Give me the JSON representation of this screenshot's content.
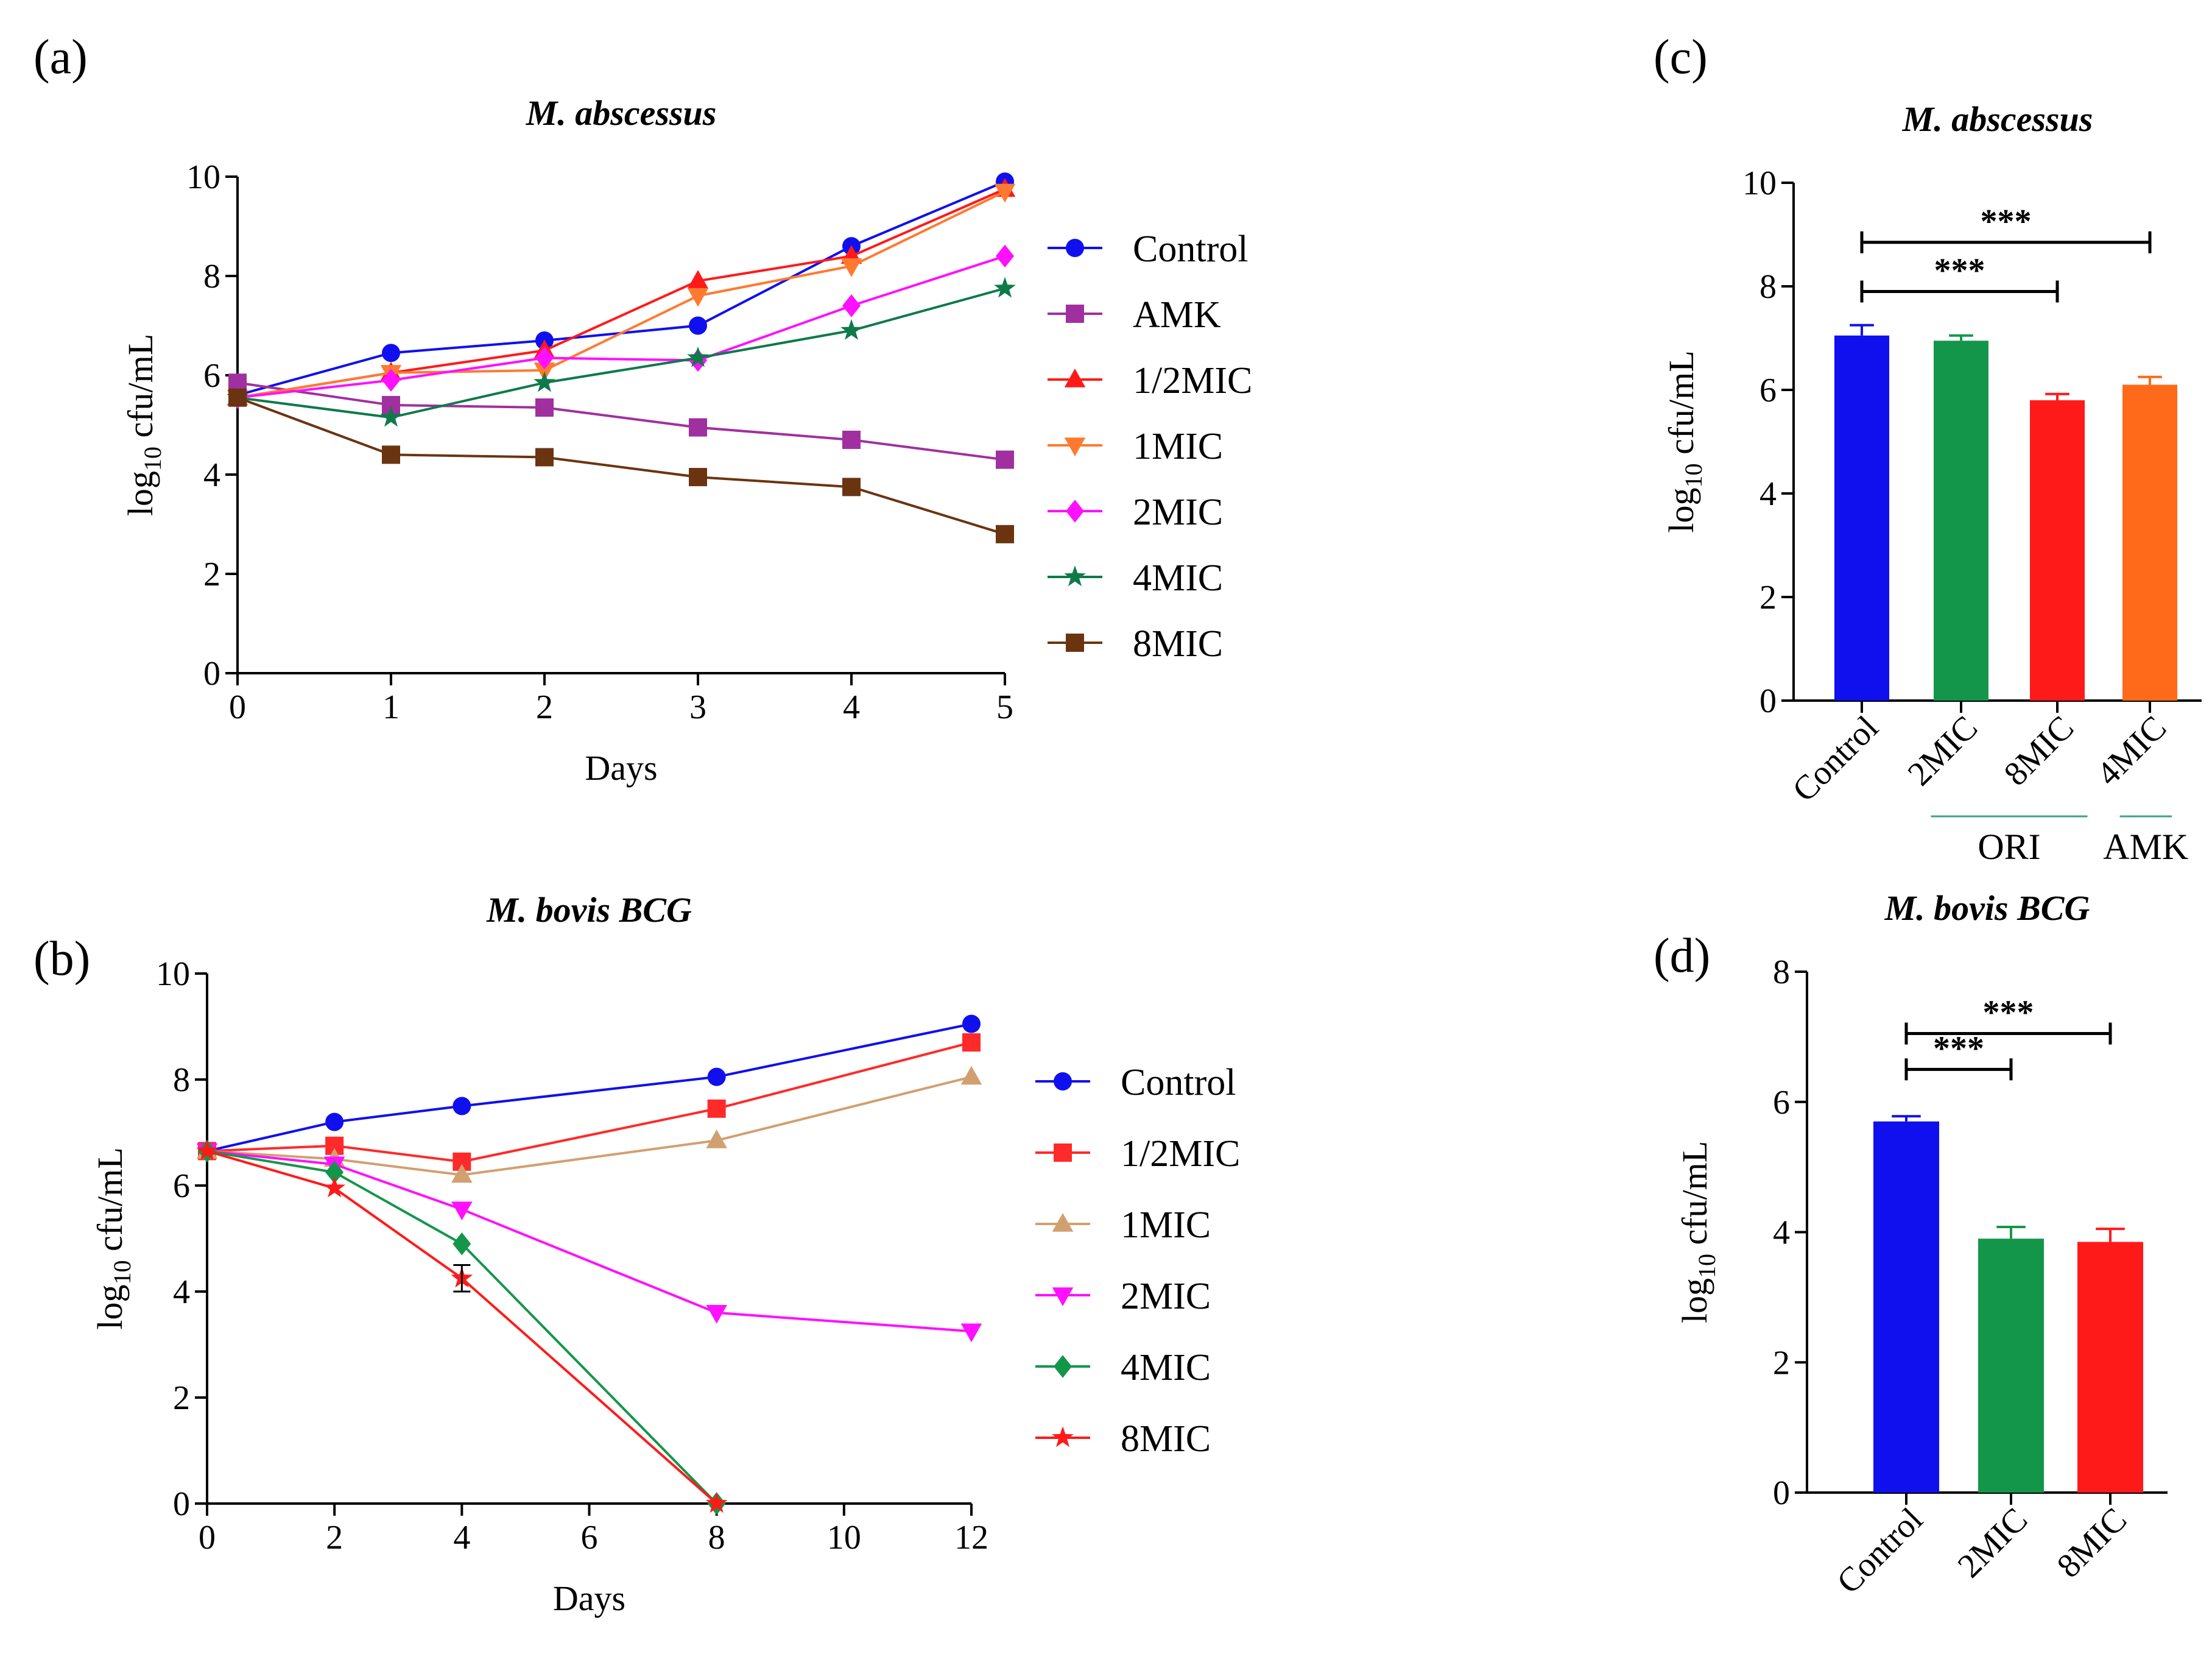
{
  "chart_data": [
    {
      "id": "a",
      "panel_label": "(a)",
      "type": "line",
      "title": "M. abscessus",
      "xlabel": "Days",
      "ylabel": "log10 cfu/mL",
      "ylabel_main": "log",
      "ylabel_sub": "10",
      "ylabel_rest": " cfu/mL",
      "xlim": [
        0,
        5
      ],
      "ylim": [
        0,
        10
      ],
      "x": [
        0,
        1,
        2,
        3,
        4,
        5
      ],
      "xticks": [
        0,
        1,
        2,
        3,
        4,
        5
      ],
      "yticks": [
        0,
        2,
        4,
        6,
        8,
        10
      ],
      "series": [
        {
          "name": "Control",
          "color": "#1010ee",
          "marker": "circle",
          "values": [
            5.6,
            6.45,
            6.7,
            7.0,
            8.6,
            9.9
          ]
        },
        {
          "name": "AMK",
          "color": "#a030a0",
          "marker": "square",
          "values": [
            5.85,
            5.4,
            5.35,
            4.95,
            4.7,
            4.3
          ]
        },
        {
          "name": "1/2MIC",
          "color": "#ff1a1a",
          "marker": "triangle-up",
          "values": [
            5.55,
            6.05,
            6.5,
            7.9,
            8.4,
            9.75
          ]
        },
        {
          "name": "1MIC",
          "color": "#ff7a30",
          "marker": "triangle-down",
          "values": [
            5.55,
            6.05,
            6.1,
            7.6,
            8.2,
            9.7
          ]
        },
        {
          "name": "2MIC",
          "color": "#ff10ff",
          "marker": "diamond",
          "values": [
            5.55,
            5.9,
            6.35,
            6.3,
            7.4,
            8.4
          ]
        },
        {
          "name": "4MIC",
          "color": "#0e7a4a",
          "marker": "star",
          "values": [
            5.55,
            5.15,
            5.85,
            6.35,
            6.9,
            7.75
          ]
        },
        {
          "name": "8MIC",
          "color": "#6b3410",
          "marker": "square",
          "values": [
            5.55,
            4.4,
            4.35,
            3.95,
            3.75,
            2.8
          ]
        }
      ]
    },
    {
      "id": "b",
      "panel_label": "(b)",
      "type": "line",
      "title": "M. bovis BCG",
      "xlabel": "Days",
      "ylabel": "log10 cfu/mL",
      "ylabel_main": "log",
      "ylabel_sub": "10",
      "ylabel_rest": " cfu/mL",
      "xlim": [
        0,
        12
      ],
      "ylim": [
        0,
        10
      ],
      "x": [
        0,
        2,
        4,
        8,
        12
      ],
      "xticks": [
        0,
        2,
        4,
        6,
        8,
        10,
        12
      ],
      "yticks": [
        0,
        2,
        4,
        6,
        8,
        10
      ],
      "series": [
        {
          "name": "Control",
          "color": "#1010ee",
          "marker": "circle",
          "values": [
            6.65,
            7.2,
            7.5,
            8.05,
            9.05
          ]
        },
        {
          "name": "1/2MIC",
          "color": "#ff2a2a",
          "marker": "square",
          "values": [
            6.65,
            6.75,
            6.45,
            7.45,
            8.7
          ]
        },
        {
          "name": "1MIC",
          "color": "#d2a070",
          "marker": "triangle-up",
          "values": [
            6.65,
            6.5,
            6.2,
            6.85,
            8.05
          ]
        },
        {
          "name": "2MIC",
          "color": "#ff10ff",
          "marker": "triangle-down",
          "values": [
            6.65,
            6.4,
            5.55,
            3.6,
            3.25
          ]
        },
        {
          "name": "4MIC",
          "color": "#14964a",
          "marker": "diamond",
          "values": [
            6.65,
            6.25,
            4.9,
            0.0,
            null
          ]
        },
        {
          "name": "8MIC",
          "color": "#ff1a1a",
          "marker": "star",
          "values": [
            6.65,
            5.95,
            4.25,
            0.0,
            null
          ]
        }
      ],
      "error_bars": [
        {
          "series": "8MIC",
          "x": 4,
          "low": 4.0,
          "high": 4.5
        }
      ]
    },
    {
      "id": "c",
      "panel_label": "(c)",
      "type": "bar",
      "title": "M. abscessus",
      "ylabel": "log10 cfu/mL",
      "ylabel_main": "log",
      "ylabel_sub": "10",
      "ylabel_rest": " cfu/mL",
      "ylim": [
        0,
        10
      ],
      "yticks": [
        0,
        2,
        4,
        6,
        8,
        10
      ],
      "categories": [
        "Control",
        "2MIC",
        "8MIC",
        "4MIC"
      ],
      "values": [
        7.05,
        6.95,
        5.8,
        6.1
      ],
      "errors": [
        0.2,
        0.1,
        0.12,
        0.15
      ],
      "colors": [
        "#1010ee",
        "#14964a",
        "#ff1a1a",
        "#ff6a1a"
      ],
      "groups": [
        {
          "label": "ORI",
          "from": 1,
          "to": 2,
          "line_color": "#3aa08a"
        },
        {
          "label": "AMK",
          "from": 3,
          "to": 3,
          "line_color": "#3aa08a"
        }
      ],
      "significance": [
        {
          "from": 0,
          "to": 3,
          "y": 8.85,
          "label": "***"
        },
        {
          "from": 0,
          "to": 2,
          "y": 7.9,
          "label": "***"
        }
      ]
    },
    {
      "id": "d",
      "panel_label": "(d)",
      "type": "bar",
      "title": "M. bovis BCG",
      "ylabel": "log10 cfu/mL",
      "ylabel_main": "log",
      "ylabel_sub": "10",
      "ylabel_rest": " cfu/mL",
      "ylim": [
        0,
        8
      ],
      "yticks": [
        0,
        2,
        4,
        6,
        8
      ],
      "categories": [
        "Control",
        "2MIC",
        "8MIC"
      ],
      "values": [
        5.7,
        3.9,
        3.85
      ],
      "errors": [
        0.08,
        0.18,
        0.2
      ],
      "colors": [
        "#1010ee",
        "#14964a",
        "#ff1a1a"
      ],
      "groups": [],
      "significance": [
        {
          "from": 0,
          "to": 2,
          "y": 7.05,
          "label": "***"
        },
        {
          "from": 0,
          "to": 1,
          "y": 6.5,
          "label": "***"
        }
      ]
    }
  ]
}
